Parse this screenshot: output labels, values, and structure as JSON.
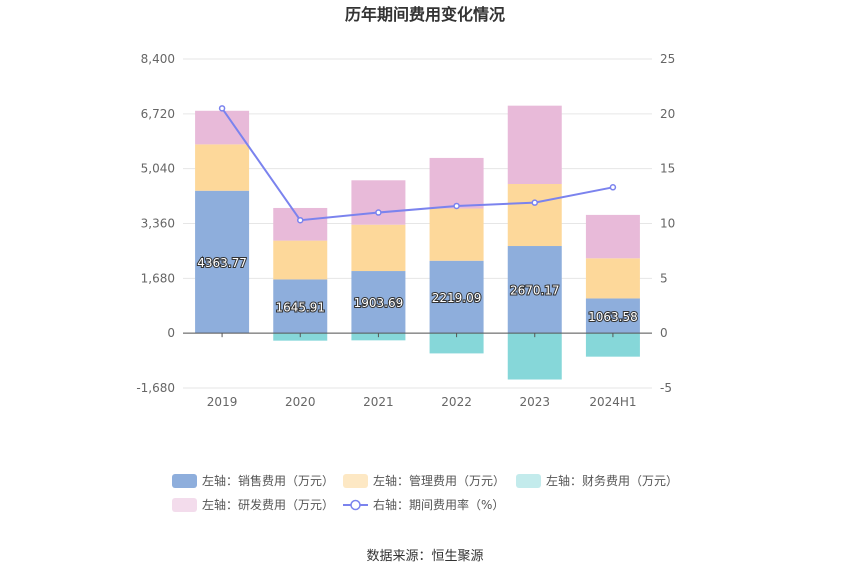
{
  "chart_data": {
    "type": "bar",
    "title": "历年期间费用变化情况",
    "categories": [
      "2019",
      "2020",
      "2021",
      "2022",
      "2023",
      "2024H1"
    ],
    "series": [
      {
        "name": "左轴：销售费用（万元）",
        "axis": "left",
        "color": "#8eaedc",
        "values": [
          4363.77,
          1645.91,
          1903.69,
          2219.09,
          2670.17,
          1063.58
        ],
        "labels": [
          "4363.77",
          "1645.91",
          "1903.69",
          "2219.09",
          "2670.17",
          "1063.58"
        ]
      },
      {
        "name": "左轴：管理费用（万元）",
        "axis": "left",
        "color": "#fdd89a",
        "values": [
          1420,
          1190,
          1420,
          1600,
          1900,
          1230
        ]
      },
      {
        "name": "左轴：财务费用（万元）",
        "axis": "left",
        "color": "#86d7d9",
        "values": [
          0,
          -230,
          -220,
          -620,
          -1420,
          -720
        ]
      },
      {
        "name": "左轴：研发费用（万元）",
        "axis": "left",
        "color": "#e8bad9",
        "values": [
          1030,
          1000,
          1360,
          1550,
          2400,
          1330
        ]
      },
      {
        "name": "右轴：期间费用率（%）",
        "axis": "right",
        "type": "line",
        "color": "#7b83ee",
        "values": [
          20.5,
          10.3,
          11.0,
          11.6,
          11.9,
          13.3
        ]
      }
    ],
    "left_axis": {
      "ticks": [
        "8,400",
        "6,720",
        "5,040",
        "3,360",
        "1,680",
        "0",
        "-1,680"
      ],
      "tick_values": [
        8400,
        6720,
        5040,
        3360,
        1680,
        0,
        -1680
      ],
      "ylim": [
        -1680,
        8400
      ]
    },
    "right_axis": {
      "ticks": [
        "25",
        "20",
        "15",
        "10",
        "5",
        "0",
        "-5"
      ],
      "tick_values": [
        25,
        20,
        15,
        10,
        5,
        0,
        -5
      ],
      "ylim": [
        -5,
        25
      ]
    },
    "legend_position": "bottom",
    "grid": true
  },
  "footer": {
    "source": "数据来源：恒生聚源"
  }
}
